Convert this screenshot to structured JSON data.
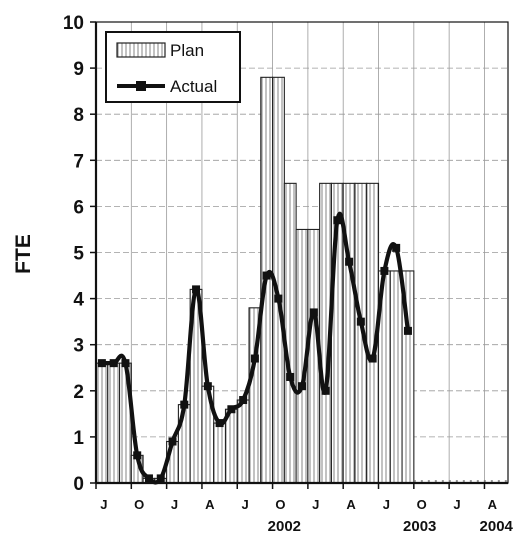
{
  "chart_data": {
    "type": "bar",
    "title": "",
    "xlabel": "",
    "ylabel": "FTE",
    "ylim": [
      0,
      10
    ],
    "y_ticks": [
      "0",
      "1",
      "2",
      "3",
      "4",
      "5",
      "6",
      "7",
      "8",
      "9",
      "10"
    ],
    "x_month_ticks": [
      "J",
      "O",
      "J",
      "A",
      "J",
      "O",
      "J",
      "A",
      "J",
      "O",
      "J",
      "A"
    ],
    "x_year_labels": [
      "2002",
      "2003",
      "2004"
    ],
    "grid": true,
    "legend_position": "top-left",
    "legend": {
      "plan": "Plan",
      "actual": "Actual"
    },
    "months": [
      "2001-07",
      "2001-08",
      "2001-09",
      "2001-10",
      "2001-11",
      "2001-12",
      "2002-01",
      "2002-02",
      "2002-03",
      "2002-04",
      "2002-05",
      "2002-06",
      "2002-07",
      "2002-08",
      "2002-09",
      "2002-10",
      "2002-11",
      "2002-12",
      "2003-01",
      "2003-02",
      "2003-03",
      "2003-04",
      "2003-05",
      "2003-06",
      "2003-07",
      "2003-08",
      "2003-09",
      "2003-10",
      "2003-11",
      "2003-12",
      "2004-01",
      "2004-02",
      "2004-03",
      "2004-04",
      "2004-05"
    ],
    "series": [
      {
        "name": "Plan",
        "type": "bar",
        "values": [
          2.6,
          2.6,
          2.6,
          0.6,
          0.1,
          0.1,
          0.9,
          1.7,
          4.2,
          2.1,
          1.3,
          1.6,
          1.8,
          3.8,
          8.8,
          8.8,
          6.5,
          5.5,
          5.5,
          6.5,
          6.5,
          6.5,
          6.5,
          6.5,
          4.6,
          4.6,
          4.6,
          null,
          null,
          null,
          null,
          null,
          null,
          null,
          null
        ]
      },
      {
        "name": "Actual",
        "type": "line",
        "values": [
          2.6,
          2.6,
          2.6,
          0.6,
          0.1,
          0.1,
          0.9,
          1.7,
          4.2,
          2.1,
          1.3,
          1.6,
          1.8,
          2.7,
          4.5,
          4.0,
          2.3,
          2.1,
          3.7,
          2.0,
          5.7,
          4.8,
          3.5,
          2.7,
          4.6,
          5.1,
          3.3,
          null,
          null,
          null,
          null,
          null,
          null,
          null,
          null
        ]
      }
    ],
    "colors": {
      "bar_fill": "#ffffff",
      "bar_stroke": "#222222",
      "line": "#111111",
      "grid": "#9a9a9a",
      "axis": "#111111"
    }
  }
}
